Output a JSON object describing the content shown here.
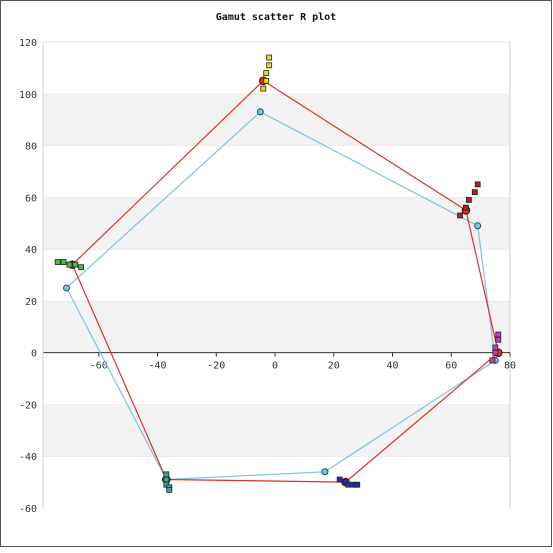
{
  "chart_data": {
    "type": "scatter",
    "title": "Gamut scatter R plot",
    "xlabel": "",
    "ylabel": "",
    "xlim": [
      -79,
      80
    ],
    "ylim": [
      -60,
      120
    ],
    "x_ticks": [
      "-60",
      "-40",
      "-20",
      "0",
      "20",
      "40",
      "60",
      "80"
    ],
    "y_ticks": [
      "120",
      "100",
      "80",
      "60",
      "40",
      "20",
      "0",
      "-20",
      "-40",
      "-60"
    ],
    "grid": "horizontal alternating bands",
    "legend": "none",
    "series": [
      {
        "color": "#e0302a",
        "style": "line-with-points",
        "points": [
          [
            -4,
            105
          ],
          [
            65,
            55
          ],
          [
            76,
            0
          ],
          [
            24,
            -50
          ],
          [
            -37,
            -49
          ],
          [
            -69,
            34
          ],
          [
            -4,
            105
          ]
        ]
      },
      {
        "color": "#7ec3e0",
        "style": "line-with-points",
        "points": [
          [
            -5,
            93
          ],
          [
            69,
            49
          ],
          [
            75,
            -3
          ],
          [
            17,
            -46
          ],
          [
            -37,
            -49
          ],
          [
            -71,
            25
          ],
          [
            -5,
            93
          ]
        ]
      }
    ],
    "point_groups": [
      {
        "color": "#e8e000",
        "points": [
          [
            -4,
            102
          ],
          [
            -3,
            105
          ],
          [
            -3,
            108
          ],
          [
            -2,
            111
          ],
          [
            -2,
            114
          ]
        ]
      },
      {
        "color": "#b02020",
        "points": [
          [
            63,
            53
          ],
          [
            65,
            56
          ],
          [
            66,
            59
          ],
          [
            68,
            62
          ],
          [
            69,
            65
          ]
        ]
      },
      {
        "color": "#c040c0",
        "points": [
          [
            74,
            -3
          ],
          [
            75,
            0
          ],
          [
            75,
            2
          ],
          [
            76,
            5
          ],
          [
            76,
            7
          ]
        ]
      },
      {
        "color": "#2030c0",
        "points": [
          [
            22,
            -49
          ],
          [
            24,
            -50
          ],
          [
            25,
            -51
          ],
          [
            27,
            -51
          ],
          [
            28,
            -51
          ]
        ]
      },
      {
        "color": "#30a8a0",
        "points": [
          [
            -37,
            -47
          ],
          [
            -37,
            -49
          ],
          [
            -37,
            -51
          ],
          [
            -36,
            -52
          ],
          [
            -36,
            -53
          ]
        ]
      },
      {
        "color": "#40c040",
        "points": [
          [
            -74,
            35
          ],
          [
            -72,
            35
          ],
          [
            -70,
            34
          ],
          [
            -68,
            34
          ],
          [
            -66,
            33
          ]
        ]
      }
    ]
  }
}
